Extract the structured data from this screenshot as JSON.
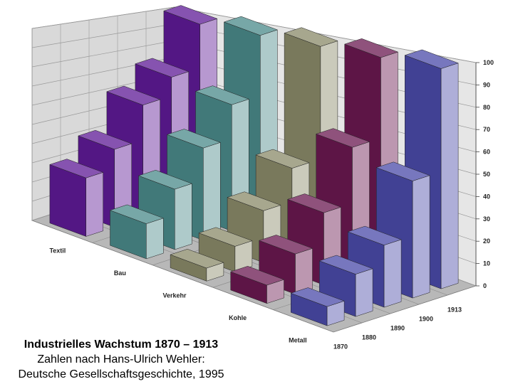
{
  "chart_data": {
    "type": "bar3d",
    "title": "Industrielles Wachstum 1870 – 1913",
    "subtitle": "Zahlen nach Hans-Ulrich Wehler:",
    "source": "Deutsche Gesellschaftsgeschichte, 1995",
    "categories": [
      "1870",
      "1880",
      "1890",
      "1900",
      "1913"
    ],
    "series": [
      {
        "name": "Textil",
        "color": "#5e1a96",
        "values": [
          30,
          41,
          61,
          73,
          100
        ]
      },
      {
        "name": "Bau",
        "color": "#4a8a8a",
        "values": [
          17,
          30,
          47,
          66,
          100
        ]
      },
      {
        "name": "Verkehr",
        "color": "#8a8a68",
        "values": [
          6,
          12,
          25,
          42,
          100
        ]
      },
      {
        "name": "Kohle",
        "color": "#6a1850",
        "values": [
          8,
          18,
          33,
          60,
          100
        ]
      },
      {
        "name": "Metall",
        "color": "#4a4aa8",
        "values": [
          8,
          18,
          27,
          52,
          100
        ]
      }
    ],
    "ylim": [
      0,
      100
    ],
    "yticks": [
      0,
      10,
      20,
      30,
      40,
      50,
      60,
      70,
      80,
      90,
      100
    ],
    "grid": true
  }
}
